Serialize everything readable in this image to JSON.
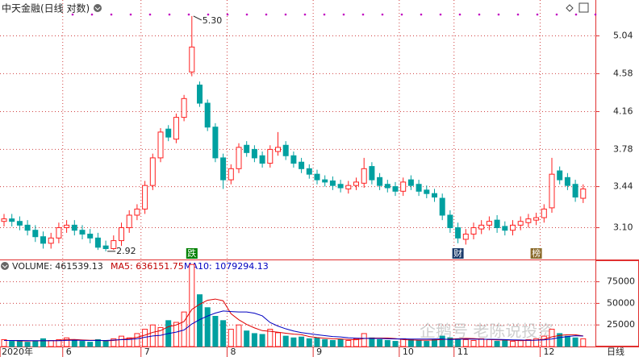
{
  "chart_data": {
    "type": "candlestick",
    "title": "中天金融(日线 对数)",
    "log_scale": true,
    "ylim": [
      2.86,
      5.52
    ],
    "yticks": [
      5.04,
      4.58,
      4.16,
      3.78,
      3.44,
      {
        "value": 3.1,
        "label": "3.10"
      }
    ],
    "xticks": [
      {
        "value": 0,
        "label": "2020年"
      },
      {
        "value": 8,
        "label": "6"
      },
      {
        "value": 18,
        "label": "7"
      },
      {
        "value": 29,
        "label": "8"
      },
      {
        "value": 40,
        "label": "9"
      },
      {
        "value": 51,
        "label": "10"
      },
      {
        "value": 58,
        "label": "11"
      },
      {
        "value": 69,
        "label": "12"
      }
    ],
    "up_color": "#ff2020",
    "down_color": "#00a0a0",
    "open": [
      3.15,
      3.17,
      3.15,
      3.12,
      3.08,
      3.03,
      2.98,
      3.02,
      3.1,
      3.12,
      3.08,
      3.05,
      3.02,
      2.96,
      2.94,
      3.0,
      3.1,
      3.2,
      3.25,
      3.45,
      3.7,
      3.98,
      3.88,
      4.1,
      4.6,
      4.45,
      4.25,
      4.0,
      3.7,
      3.5,
      3.6,
      3.82,
      3.78,
      3.72,
      3.65,
      3.76,
      3.82,
      3.72,
      3.66,
      3.6,
      3.55,
      3.5,
      3.49,
      3.46,
      3.42,
      3.45,
      3.47,
      3.62,
      3.52,
      3.46,
      3.44,
      3.4,
      3.5,
      3.46,
      3.41,
      3.38,
      3.34,
      3.2,
      3.1,
      3.01,
      3.05,
      3.09,
      3.12,
      3.16,
      3.11,
      3.08,
      3.12,
      3.14,
      3.16,
      3.18,
      3.26,
      3.58,
      3.52,
      3.46,
      3.34
    ],
    "high": [
      3.21,
      3.21,
      3.19,
      3.16,
      3.12,
      3.07,
      3.06,
      3.14,
      3.16,
      3.16,
      3.12,
      3.09,
      3.06,
      3.0,
      3.04,
      3.14,
      3.24,
      3.29,
      3.49,
      3.74,
      3.99,
      4.02,
      4.14,
      4.34,
      5.3,
      4.49,
      4.29,
      4.04,
      3.74,
      3.64,
      3.84,
      3.86,
      3.82,
      3.76,
      3.82,
      3.95,
      3.86,
      3.76,
      3.7,
      3.64,
      3.59,
      3.54,
      3.53,
      3.5,
      3.49,
      3.52,
      3.7,
      3.66,
      3.56,
      3.5,
      3.48,
      3.52,
      3.54,
      3.5,
      3.45,
      3.42,
      3.38,
      3.24,
      3.14,
      3.09,
      3.14,
      3.16,
      3.19,
      3.2,
      3.15,
      3.16,
      3.19,
      3.21,
      3.22,
      3.29,
      3.7,
      3.62,
      3.56,
      3.5,
      3.46
    ],
    "low": [
      3.11,
      3.11,
      3.08,
      3.04,
      2.99,
      2.94,
      2.94,
      2.98,
      3.06,
      3.04,
      3.01,
      2.98,
      2.93,
      2.92,
      2.93,
      2.96,
      3.06,
      3.16,
      3.21,
      3.41,
      3.66,
      3.86,
      3.84,
      4.06,
      4.55,
      4.21,
      3.96,
      3.66,
      3.42,
      3.46,
      3.56,
      3.71,
      3.66,
      3.61,
      3.61,
      3.72,
      3.68,
      3.61,
      3.56,
      3.51,
      3.46,
      3.44,
      3.41,
      3.39,
      3.38,
      3.41,
      3.43,
      3.46,
      3.41,
      3.39,
      3.36,
      3.36,
      3.41,
      3.36,
      3.34,
      3.31,
      3.16,
      3.06,
      2.98,
      2.97,
      3.01,
      3.05,
      3.08,
      3.06,
      3.04,
      3.04,
      3.08,
      3.1,
      3.12,
      3.14,
      3.22,
      3.46,
      3.41,
      3.31,
      3.3
    ],
    "close": [
      3.17,
      3.15,
      3.12,
      3.08,
      3.03,
      2.98,
      3.02,
      3.1,
      3.12,
      3.08,
      3.05,
      3.02,
      2.95,
      2.94,
      3.0,
      3.1,
      3.2,
      3.25,
      3.45,
      3.7,
      3.95,
      3.9,
      4.1,
      4.3,
      4.9,
      4.25,
      4.0,
      3.7,
      3.5,
      3.6,
      3.8,
      3.75,
      3.7,
      3.65,
      3.78,
      3.8,
      3.72,
      3.65,
      3.6,
      3.55,
      3.5,
      3.48,
      3.45,
      3.43,
      3.45,
      3.48,
      3.6,
      3.5,
      3.45,
      3.43,
      3.4,
      3.48,
      3.45,
      3.4,
      3.38,
      3.35,
      3.2,
      3.1,
      3.02,
      3.05,
      3.1,
      3.12,
      3.15,
      3.1,
      3.08,
      3.12,
      3.15,
      3.17,
      3.18,
      3.25,
      3.55,
      3.5,
      3.45,
      3.35,
      3.42
    ],
    "annotations": [
      {
        "label": "5.30",
        "value": 5.3
      },
      {
        "label": "2.92",
        "value": 2.92
      }
    ],
    "events": [
      {
        "label": "跌",
        "index": 24,
        "color": "#008000"
      },
      {
        "label": "财",
        "index": 58,
        "color": "#1a3a6a"
      },
      {
        "label": "榜",
        "index": 68,
        "color": "#8a6a2a"
      }
    ],
    "volume": {
      "legend": "VOLUME: 461539.13",
      "ma5_label": "MA5: 636151.75",
      "ma10_label": "MA10: 1079294.13",
      "ylim": [
        0,
        98000
      ],
      "yticks": [
        25000,
        50000,
        75000
      ],
      "values": [
        8000,
        6000,
        7000,
        5000,
        6000,
        9000,
        7000,
        8000,
        10000,
        7000,
        6000,
        5000,
        8000,
        7000,
        9000,
        12000,
        10000,
        15000,
        20000,
        25000,
        22000,
        30000,
        28000,
        40000,
        95000,
        60000,
        45000,
        35000,
        30000,
        20000,
        25000,
        18000,
        15000,
        14000,
        20000,
        16000,
        12000,
        10000,
        11000,
        9000,
        10000,
        8000,
        7000,
        8000,
        7000,
        9000,
        15000,
        10000,
        8000,
        7000,
        6000,
        9000,
        8000,
        7000,
        6000,
        8000,
        12000,
        10000,
        9000,
        8000,
        7000,
        9000,
        8000,
        6000,
        7000,
        6000,
        7000,
        8000,
        9000,
        12000,
        20000,
        15000,
        12000,
        10000,
        9000
      ],
      "ma5": [
        7000,
        7000,
        6500,
        6400,
        6600,
        6600,
        6800,
        7000,
        8000,
        8200,
        7600,
        7200,
        7200,
        6600,
        7000,
        8200,
        9200,
        10600,
        13200,
        16400,
        18400,
        23000,
        25000,
        29000,
        43000,
        49000,
        53600,
        55000,
        53000,
        38000,
        31000,
        25600,
        21600,
        18400,
        17600,
        16600,
        15400,
        14400,
        13800,
        11600,
        10400,
        9600,
        9000,
        8800,
        8200,
        7800,
        9200,
        9800,
        9800,
        9800,
        9200,
        8000,
        7600,
        7400,
        7400,
        7600,
        8200,
        8600,
        9000,
        9400,
        9200,
        8600,
        8200,
        7600,
        7600,
        7200,
        6800,
        7200,
        7400,
        8400,
        11200,
        12800,
        13600,
        13600,
        12200
      ],
      "ma10": [
        7000,
        7000,
        7000,
        6900,
        6800,
        6800,
        6800,
        6800,
        7100,
        7300,
        7100,
        7000,
        7100,
        7000,
        7500,
        7900,
        8200,
        9000,
        10700,
        12300,
        13000,
        15100,
        16700,
        19100,
        26100,
        31200,
        35300,
        38700,
        41200,
        40500,
        40000,
        40000,
        38600,
        35500,
        27800,
        23700,
        20500,
        18000,
        16100,
        14900,
        13700,
        12600,
        11600,
        11100,
        10200,
        9700,
        9400,
        9300,
        9300,
        9000,
        8800,
        8900,
        8600,
        8600,
        8600,
        8700,
        8700,
        8100,
        8500,
        8600,
        8500,
        8400,
        8400,
        8300,
        8000,
        7700,
        7600,
        7200,
        7300,
        7700,
        8800,
        10400,
        11600,
        12500,
        12100
      ],
      "ma5_color": "#e00000",
      "ma10_color": "#0000c0"
    },
    "period_label": "日线",
    "watermark": "企鹅号 老陈说投资"
  }
}
